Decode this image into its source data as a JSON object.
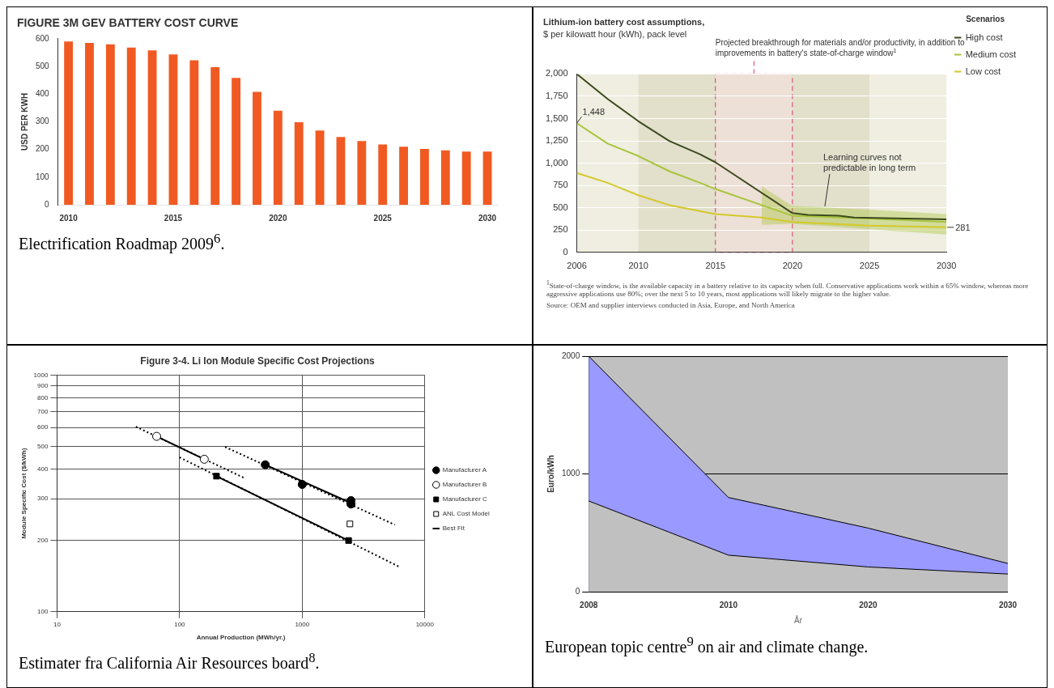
{
  "chart_data": [
    {
      "type": "bar",
      "title": "FIGURE 3M GEV BATTERY COST CURVE",
      "ylabel": "USD PER KWH",
      "categories": [
        "2010",
        null,
        null,
        null,
        null,
        "2015",
        null,
        null,
        null,
        null,
        "2020",
        null,
        null,
        null,
        null,
        "2025",
        null,
        null,
        null,
        null,
        "2030"
      ],
      "values": [
        590,
        585,
        580,
        568,
        558,
        543,
        522,
        497,
        458,
        408,
        340,
        298,
        268,
        245,
        230,
        218,
        210,
        202,
        197,
        192,
        192
      ],
      "color": "#f05a22",
      "ylim": [
        0,
        600
      ],
      "yticks": [
        0,
        100,
        200,
        300,
        400,
        500,
        600
      ],
      "annotations": [
        "Electrification Roadmap 2009$^{6}$."
      ]
    },
    {
      "type": "line",
      "title": "Lithium-ion battery cost assumptions,",
      "subtitle": "$ per kilowatt hour (kWh), pack level",
      "legend": "top right",
      "legend_title": "Scenarios",
      "xlim": [
        2006,
        2030
      ],
      "xticks": [
        2006,
        2010,
        2015,
        2020,
        2025,
        2030
      ],
      "ylim": [
        0,
        2000
      ],
      "yticks": [
        0,
        {
          "value": 250,
          "label": "250"
        },
        {
          "value": 500,
          "label": "500"
        },
        {
          "value": 750,
          "label": "750"
        },
        {
          "value": 1000,
          "label": "1,000"
        },
        {
          "value": 1250,
          "label": "1,250"
        },
        {
          "value": 1500,
          "label": "1,500"
        },
        {
          "value": 1750,
          "label": "1,750"
        },
        {
          "value": 2000,
          "label": "2,000"
        }
      ],
      "grid": "y",
      "series": [
        {
          "name": "High cost",
          "color": "#3d4a1e",
          "x": [
            2006,
            2008,
            2010,
            2012,
            2014,
            2015,
            2020,
            2021,
            2023,
            2024,
            2030
          ],
          "values": [
            2000,
            1720,
            1470,
            1250,
            1100,
            1010,
            440,
            420,
            410,
            390,
            370
          ]
        },
        {
          "name": "Medium cost",
          "color": "#a8c43a",
          "x": [
            2006,
            2008,
            2010,
            2012,
            2014,
            2015,
            2018,
            2020,
            2025,
            2030
          ],
          "values": [
            1448,
            1220,
            1080,
            910,
            780,
            710,
            530,
            410,
            380,
            340
          ],
          "lower": [
            null,
            null,
            null,
            null,
            null,
            null,
            310,
            320,
            260,
            200
          ],
          "upper": [
            null,
            null,
            null,
            null,
            null,
            null,
            740,
            520,
            480,
            430
          ]
        },
        {
          "name": "Low cost",
          "color": "#d4c82a",
          "x": [
            2006,
            2008,
            2010,
            2012,
            2015,
            2018,
            2020,
            2025,
            2030
          ],
          "values": [
            890,
            780,
            640,
            530,
            430,
            390,
            340,
            300,
            281
          ]
        }
      ],
      "bands": [
        {
          "axis": "x",
          "from": 2010,
          "to": 2015,
          "color": "#e2dfcb"
        },
        {
          "axis": "x",
          "from": 2020,
          "to": 2025,
          "color": "#e2dfcb"
        },
        {
          "axis": "x",
          "from": 2015,
          "to": 2020,
          "label": "Projected breakthrough for materials and/or productivity, in addition to improvements in battery's state-of-charge window$^{1}$",
          "color": "#d63b6b"
        }
      ],
      "annotations": [
        {
          "text": "1,448",
          "x": 2006,
          "y": 1448
        },
        {
          "text": "281",
          "x": 2030,
          "y": 281
        },
        {
          "text": "Learning curves not predictable in long term",
          "x": 2022,
          "y": 480
        },
        "$^{1}$State-of-charge window, is the available capacity in a battery relative to its capacity when full. Conservative applications work within a 65% window, whereas more aggressive applications use 80%; over the next 5 to 10 years, most applications will likely migrate to the higher value.",
        "Source: OEM and supplier interviews conducted in Asia, Europe, and North America"
      ]
    },
    {
      "type": "scatter",
      "title": "Figure 3-4. Li Ion Module Specific Cost Projections",
      "xlabel": "Annual Production (MWh/yr.)",
      "ylabel": "Module Specific Cost ($/kWh)",
      "log": "xy",
      "grid": true,
      "legend": "right",
      "xlim": [
        10,
        10000
      ],
      "xticks": [
        10,
        100,
        1000,
        10000
      ],
      "ylim": [
        100,
        1000
      ],
      "yticks": [
        100,
        200,
        300,
        400,
        500,
        600,
        700,
        800,
        900,
        1000
      ],
      "series": [
        {
          "name": "Manufacturer A",
          "type": "scatter",
          "marker": "circle",
          "color": "#000000",
          "x": [
            500,
            1000,
            2500,
            2500
          ],
          "values": [
            418,
            345,
            295,
            285
          ]
        },
        {
          "name": "Manufacturer B",
          "type": "scatter",
          "marker": "circle",
          "color": "#ffffff",
          "x": [
            65,
            159
          ],
          "values": [
            551,
            441
          ]
        },
        {
          "name": "Manufacturer C",
          "type": "scatter",
          "marker": "square",
          "color": "#000000",
          "x": [
            200,
            2390
          ],
          "values": [
            374,
            200
          ]
        },
        {
          "name": "ANL Cost Model",
          "type": "scatter",
          "marker": "square",
          "color": "#ffffff",
          "x": [
            2450
          ],
          "values": [
            235
          ]
        },
        {
          "name": "Best Fit",
          "type": "line",
          "line_style": "solid",
          "color": "#000000",
          "x": [
            65,
            159
          ],
          "values": [
            551,
            441
          ]
        },
        {
          "type": "line",
          "line_style": "solid",
          "color": "#000000",
          "x": [
            500,
            2500
          ],
          "values": [
            418,
            288
          ]
        },
        {
          "type": "line",
          "line_style": "solid",
          "color": "#000000",
          "x": [
            200,
            2390
          ],
          "values": [
            374,
            200
          ]
        },
        {
          "type": "line",
          "line_style": "dotted",
          "color": "#000000",
          "x": [
            44,
            339
          ],
          "values": [
            605,
            367
          ]
        },
        {
          "type": "line",
          "line_style": "dotted",
          "color": "#000000",
          "x": [
            235,
            5700
          ],
          "values": [
            497,
            233
          ]
        },
        {
          "type": "line",
          "line_style": "dotted",
          "color": "#000000",
          "x": [
            100,
            6170
          ],
          "values": [
            449,
            155
          ]
        }
      ],
      "annotations": [
        "Estimater fra California Air Resources board$^{8}$."
      ]
    },
    {
      "type": "area",
      "xlabel": "År",
      "ylabel": "Euro/kWh",
      "categories": [
        "2008",
        "2010",
        "2020",
        "2030"
      ],
      "ylim": [
        0,
        2000
      ],
      "yticks": [
        0,
        1000,
        2000
      ],
      "grid": "y",
      "series": [
        {
          "type": "area",
          "color": "#9999ff",
          "values": [
            2000,
            800,
            540,
            240
          ]
        },
        {
          "type": "area",
          "color": "#c0c0c0",
          "values": [
            770,
            310,
            210,
            150
          ]
        }
      ],
      "annotations": [
        "European topic centre$^{9}$ on air and climate change."
      ]
    }
  ]
}
